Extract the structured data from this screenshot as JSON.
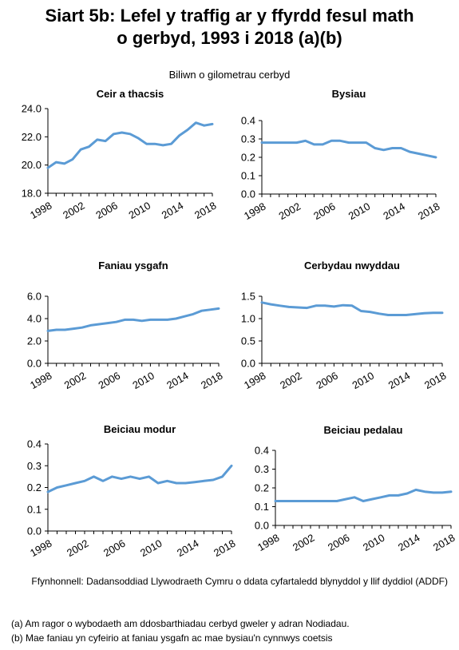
{
  "title": {
    "line1": "Siart 5b: Lefel y traffig ar y ffyrdd fesul math",
    "line2": "o gerbyd, 1993 i 2018 (a)(b)"
  },
  "subtitle": "Biliwn o gilometrau cerbyd",
  "source": "Ffynhonnell: Dadansoddiad Llywodraeth Cymru o ddata cyfartaledd blynyddol y llif dyddiol (ADDF)",
  "notes": [
    "(a) Am ragor o wybodaeth am ddosbarthiadau cerbyd gweler y adran Nodiadau.",
    "(b) Mae faniau yn cyfeirio at faniau ysgafn ac mae bysiau'n cynnwys coetsis"
  ],
  "colors": {
    "line": "#5b9bd5",
    "axis": "#000000"
  },
  "chart_data": [
    {
      "type": "line",
      "title": "Ceir a thacsis",
      "x": [
        1998,
        1999,
        2000,
        2001,
        2002,
        2003,
        2004,
        2005,
        2006,
        2007,
        2008,
        2009,
        2010,
        2011,
        2012,
        2013,
        2014,
        2015,
        2016,
        2017,
        2018
      ],
      "values": [
        19.8,
        20.2,
        20.1,
        20.4,
        21.1,
        21.3,
        21.8,
        21.7,
        22.2,
        22.3,
        22.2,
        21.9,
        21.5,
        21.5,
        21.4,
        21.5,
        22.1,
        22.5,
        23.0,
        22.8,
        22.9
      ],
      "ylim": [
        18.0,
        24.0
      ],
      "yticks": [
        "18.0",
        "20.0",
        "22.0",
        "24.0"
      ],
      "xticks": [
        "1998",
        "2002",
        "2006",
        "2010",
        "2014",
        "2018"
      ]
    },
    {
      "type": "line",
      "title": "Bysiau",
      "x": [
        1998,
        1999,
        2000,
        2001,
        2002,
        2003,
        2004,
        2005,
        2006,
        2007,
        2008,
        2009,
        2010,
        2011,
        2012,
        2013,
        2014,
        2015,
        2016,
        2017,
        2018
      ],
      "values": [
        0.28,
        0.28,
        0.28,
        0.28,
        0.28,
        0.29,
        0.27,
        0.27,
        0.29,
        0.29,
        0.28,
        0.28,
        0.28,
        0.25,
        0.24,
        0.25,
        0.25,
        0.23,
        0.22,
        0.21,
        0.2
      ],
      "ylim": [
        0.0,
        0.4
      ],
      "yticks": [
        "0.0",
        "0.1",
        "0.2",
        "0.3",
        "0.4"
      ],
      "xticks": [
        "1998",
        "2002",
        "2006",
        "2010",
        "2014",
        "2018"
      ]
    },
    {
      "type": "line",
      "title": "Faniau ysgafn",
      "x": [
        1998,
        1999,
        2000,
        2001,
        2002,
        2003,
        2004,
        2005,
        2006,
        2007,
        2008,
        2009,
        2010,
        2011,
        2012,
        2013,
        2014,
        2015,
        2016,
        2017,
        2018
      ],
      "values": [
        2.9,
        3.0,
        3.0,
        3.1,
        3.2,
        3.4,
        3.5,
        3.6,
        3.7,
        3.9,
        3.9,
        3.8,
        3.9,
        3.9,
        3.9,
        4.0,
        4.2,
        4.4,
        4.7,
        4.8,
        4.9
      ],
      "ylim": [
        0.0,
        6.0
      ],
      "yticks": [
        "0.0",
        "2.0",
        "4.0",
        "6.0"
      ],
      "xticks": [
        "1998",
        "2002",
        "2006",
        "2010",
        "2014",
        "2018"
      ]
    },
    {
      "type": "line",
      "title": "Cerbydau nwyddau",
      "x": [
        1998,
        1999,
        2000,
        2001,
        2002,
        2003,
        2004,
        2005,
        2006,
        2007,
        2008,
        2009,
        2010,
        2011,
        2012,
        2013,
        2014,
        2015,
        2016,
        2017,
        2018
      ],
      "values": [
        1.36,
        1.32,
        1.29,
        1.26,
        1.25,
        1.24,
        1.29,
        1.29,
        1.27,
        1.3,
        1.29,
        1.17,
        1.15,
        1.11,
        1.08,
        1.08,
        1.08,
        1.1,
        1.12,
        1.13,
        1.13
      ],
      "ylim": [
        0.0,
        1.5
      ],
      "yticks": [
        "0.0",
        "0.5",
        "1.0",
        "1.5"
      ],
      "xticks": [
        "1998",
        "2002",
        "2006",
        "2010",
        "2014",
        "2018"
      ]
    },
    {
      "type": "line",
      "title": "Beiciau modur",
      "x": [
        1998,
        1999,
        2000,
        2001,
        2002,
        2003,
        2004,
        2005,
        2006,
        2007,
        2008,
        2009,
        2010,
        2011,
        2012,
        2013,
        2014,
        2015,
        2016,
        2017,
        2018
      ],
      "values": [
        0.18,
        0.2,
        0.21,
        0.22,
        0.23,
        0.25,
        0.23,
        0.25,
        0.24,
        0.25,
        0.24,
        0.25,
        0.22,
        0.23,
        0.22,
        0.22,
        0.225,
        0.23,
        0.235,
        0.25,
        0.3
      ],
      "ylim": [
        0.0,
        0.4
      ],
      "yticks": [
        "0.0",
        "0.1",
        "0.2",
        "0.3",
        "0.4"
      ],
      "xticks": [
        "1998",
        "2002",
        "2006",
        "2010",
        "2014",
        "2018"
      ]
    },
    {
      "type": "line",
      "title": "Beiciau pedalau",
      "x": [
        1998,
        1999,
        2000,
        2001,
        2002,
        2003,
        2004,
        2005,
        2006,
        2007,
        2008,
        2009,
        2010,
        2011,
        2012,
        2013,
        2014,
        2015,
        2016,
        2017,
        2018
      ],
      "values": [
        0.13,
        0.13,
        0.13,
        0.13,
        0.13,
        0.13,
        0.13,
        0.13,
        0.14,
        0.15,
        0.13,
        0.14,
        0.15,
        0.16,
        0.16,
        0.17,
        0.19,
        0.18,
        0.175,
        0.175,
        0.18
      ],
      "ylim": [
        0.0,
        0.4
      ],
      "yticks": [
        "0.0",
        "0.1",
        "0.2",
        "0.3",
        "0.4"
      ],
      "xticks": [
        "1998",
        "2002",
        "2006",
        "2010",
        "2014",
        "2018"
      ]
    }
  ]
}
